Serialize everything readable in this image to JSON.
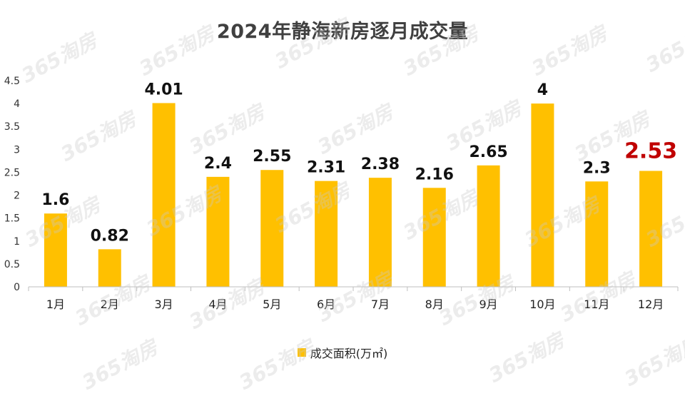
{
  "title": "2024年静海新房逐月成交量",
  "watermark": "365淘房",
  "legend_label": "成交面积(万㎡)",
  "colors": {
    "bar": "#ffc000",
    "highlight_label": "#c00000",
    "axis": "#bfbfbf"
  },
  "chart_data": {
    "type": "bar",
    "title": "2024年静海新房逐月成交量",
    "categories": [
      "1月",
      "2月",
      "3月",
      "4月",
      "5月",
      "6月",
      "7月",
      "8月",
      "9月",
      "10月",
      "11月",
      "12月"
    ],
    "series": [
      {
        "name": "成交面积(万㎡)",
        "values": [
          1.6,
          0.82,
          4.01,
          2.4,
          2.55,
          2.31,
          2.38,
          2.16,
          2.65,
          4,
          2.3,
          2.53
        ]
      }
    ],
    "data_labels": [
      "1.6",
      "0.82",
      "4.01",
      "2.4",
      "2.55",
      "2.31",
      "2.38",
      "2.16",
      "2.65",
      "4",
      "2.3",
      "2.53"
    ],
    "highlight_index": 11,
    "ylim": [
      0,
      4.5
    ],
    "yticks": [
      "0",
      "0.5",
      "1",
      "1.5",
      "2",
      "2.5",
      "3",
      "3.5",
      "4",
      "4.5"
    ],
    "grid": false,
    "legend_position": "bottom"
  }
}
